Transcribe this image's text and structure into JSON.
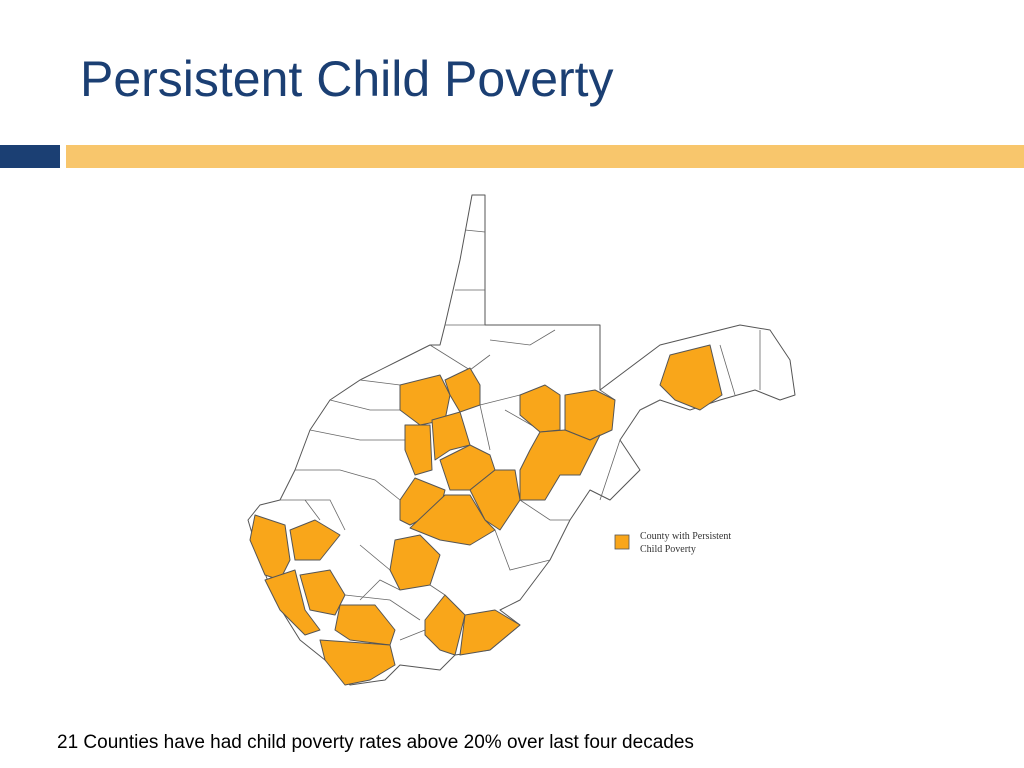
{
  "header": {
    "title": "Persistent Child Poverty"
  },
  "legend": {
    "lines": [
      "County with Persistent",
      "Child Poverty"
    ]
  },
  "caption": "21 Counties have had child poverty rates above 20% over last four decades"
}
